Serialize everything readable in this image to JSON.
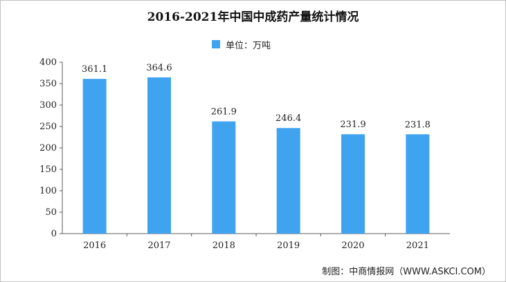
{
  "title": "2016-2021年中国中成药产量统计情况",
  "legend": {
    "label": "单位：万吨",
    "color": "#3fa3f0"
  },
  "footer": "制图：中商情报网（WWW.ASKCI.COM）",
  "chart_data": {
    "type": "bar",
    "title": "2016-2021年中国中成药产量统计情况",
    "categories": [
      "2016",
      "2017",
      "2018",
      "2019",
      "2020",
      "2021"
    ],
    "values": [
      361.1,
      364.6,
      261.9,
      246.4,
      231.9,
      231.8
    ],
    "value_labels": [
      "361.1",
      "364.6",
      "261.9",
      "246.4",
      "231.9",
      "231.8"
    ],
    "ylim": [
      0,
      400
    ],
    "yticks": [
      "0",
      "50",
      "100",
      "150",
      "200",
      "250",
      "300",
      "350",
      "400"
    ],
    "grid": false,
    "legend_position": "top-center",
    "bar_color": "#3fa3f0"
  }
}
